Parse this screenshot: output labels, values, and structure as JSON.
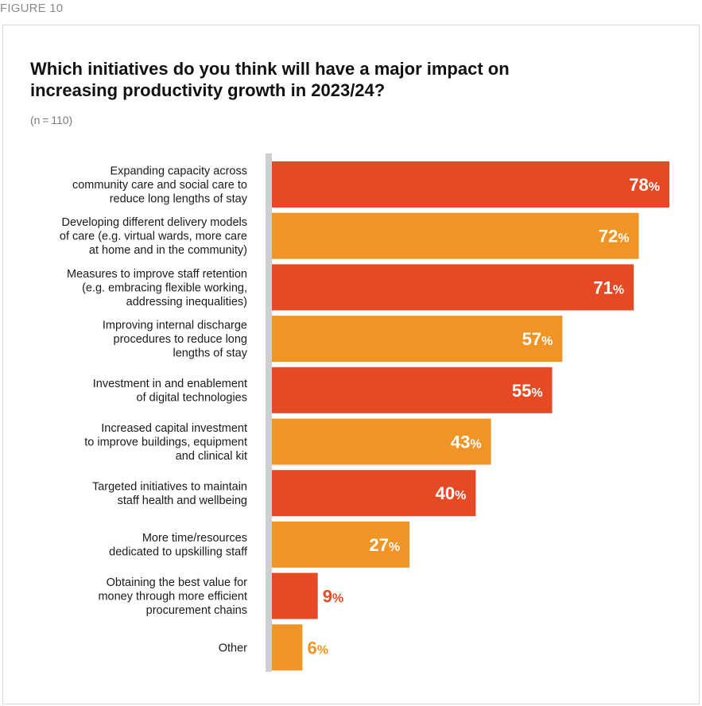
{
  "figure_label": "FIGURE 10",
  "title": "Which initiatives do you think will have a major impact on increasing productivity growth in 2023/24?",
  "sample_note": "(n = 110)",
  "colors": {
    "red": "#e54a24",
    "orange": "#f19426",
    "axis": "#cfcfcf"
  },
  "chart_data": {
    "type": "bar",
    "orientation": "horizontal",
    "title": "Which initiatives do you think will have a major impact on increasing productivity growth in 2023/24?",
    "xlim": [
      0,
      80
    ],
    "unit": "%",
    "categories": [
      [
        "Expanding capacity across",
        "community care and social care to",
        "reduce long lengths of stay"
      ],
      [
        "Developing different delivery models",
        "of care (e.g. virtual wards, more care",
        "at home and in the community)"
      ],
      [
        "Measures to improve staff retention",
        "(e.g. embracing flexible working,",
        "addressing inequalities)"
      ],
      [
        "Improving internal discharge",
        "procedures to reduce long",
        "lengths of stay"
      ],
      [
        "Investment in and enablement",
        "of digital technologies"
      ],
      [
        "Increased capital investment",
        "to improve buildings, equipment",
        "and clinical kit"
      ],
      [
        "Targeted initiatives to maintain",
        "staff health and wellbeing"
      ],
      [
        "More time/resources",
        "dedicated to upskilling staff"
      ],
      [
        "Obtaining the best value for",
        "money through more efficient",
        "procurement chains"
      ],
      [
        "Other"
      ]
    ],
    "values": [
      78,
      72,
      71,
      57,
      55,
      43,
      40,
      27,
      9,
      6
    ],
    "bar_colors": [
      "red",
      "orange",
      "red",
      "orange",
      "red",
      "orange",
      "red",
      "orange",
      "red",
      "orange"
    ]
  }
}
